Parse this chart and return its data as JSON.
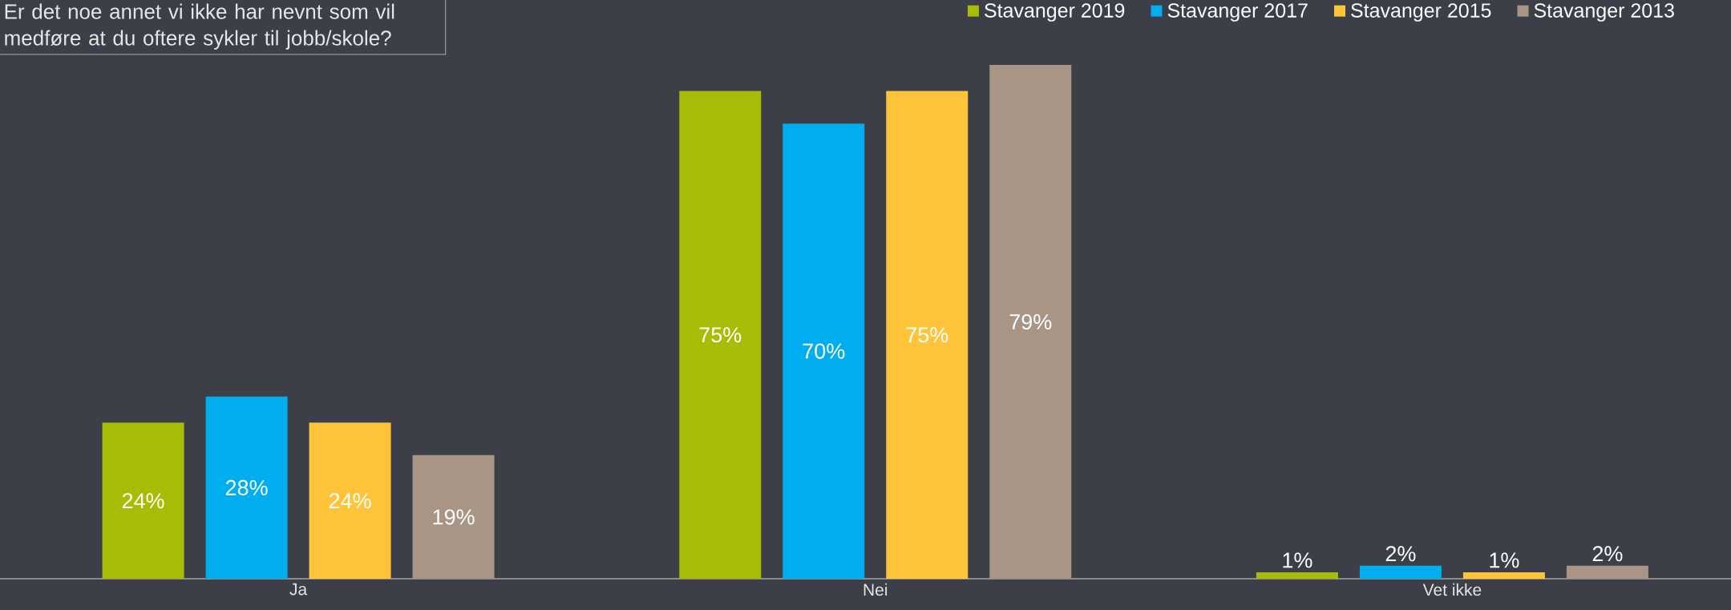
{
  "chart_data": {
    "type": "bar",
    "title": "Er det noe annet vi ikke har nevnt som vil medføre at du oftere sykler til jobb/skole?",
    "categories": [
      "Ja",
      "Nei",
      "Vet ikke"
    ],
    "series": [
      {
        "name": "Stavanger 2019",
        "color": "#a8bb05",
        "values": [
          24,
          75,
          1
        ],
        "value_labels": [
          "24%",
          "75%",
          "1%"
        ]
      },
      {
        "name": "Stavanger 2017",
        "color": "#00aeef",
        "values": [
          28,
          70,
          2
        ],
        "value_labels": [
          "28%",
          "70%",
          "2%"
        ]
      },
      {
        "name": "Stavanger 2015",
        "color": "#ffc43a",
        "values": [
          24,
          75,
          1
        ],
        "value_labels": [
          "24%",
          "75%",
          "1%"
        ]
      },
      {
        "name": "Stavanger 2013",
        "color": "#a89585",
        "values": [
          19,
          79,
          2
        ],
        "value_labels": [
          "19%",
          "79%",
          "2%"
        ]
      }
    ],
    "ylim": [
      0,
      89
    ],
    "legend": "top right"
  }
}
